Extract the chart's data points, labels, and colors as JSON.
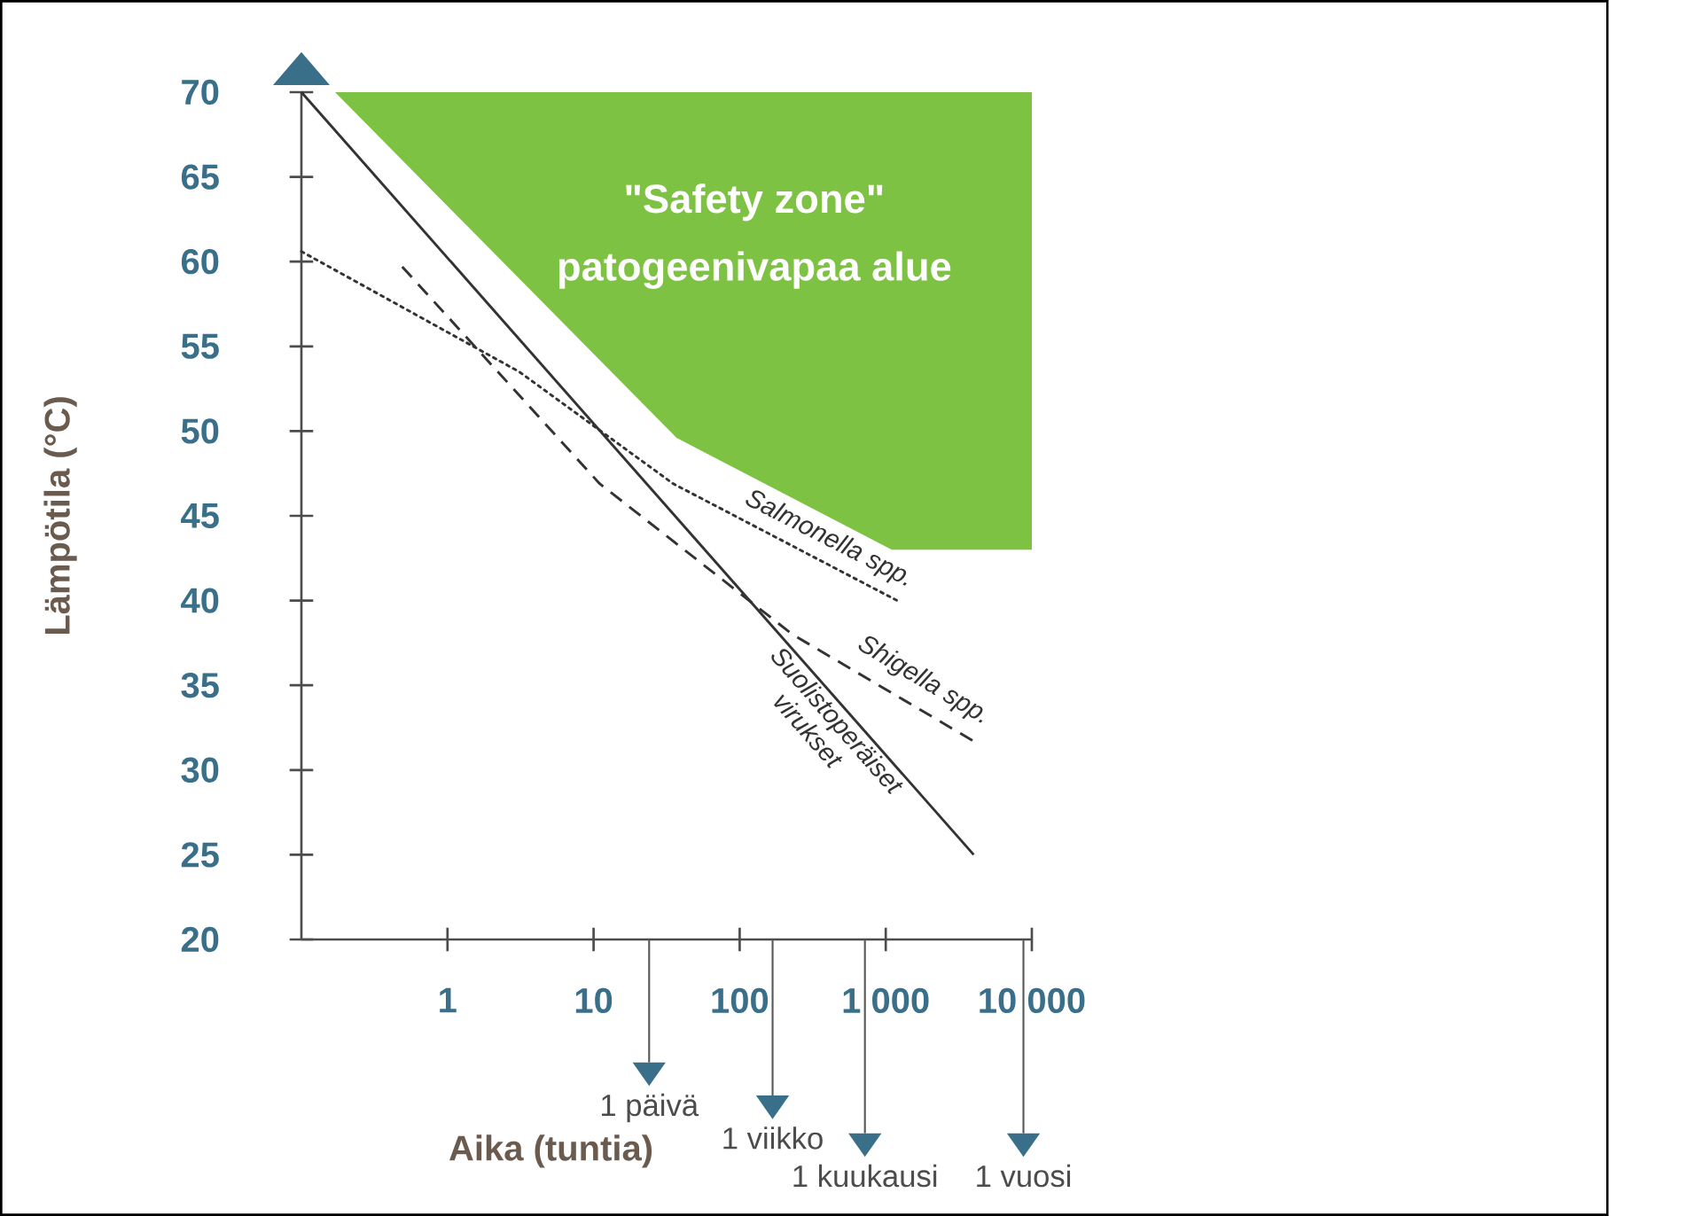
{
  "chart_data": {
    "type": "line",
    "xlabel": "Aika (tuntia)",
    "ylabel": "Lämpötila (°C)",
    "log": "x",
    "xlim": [
      0.1,
      10000
    ],
    "ylim": [
      20,
      70
    ],
    "xticks": [
      1,
      10,
      100,
      {
        "value": 1000,
        "label": "1 000"
      },
      {
        "value": 10000,
        "label": "10 000"
      }
    ],
    "yticks": [
      20,
      25,
      30,
      35,
      40,
      45,
      50,
      55,
      60,
      65,
      70
    ],
    "series": [
      {
        "type": "area",
        "color": "#7dc242",
        "x": [
          0.17,
          37,
          1100,
          10000,
          10000
        ],
        "values": [
          70,
          49.6,
          43,
          43,
          70
        ]
      },
      {
        "name": "Salmonella spp.",
        "color": "#333333",
        "line_style": "dotted",
        "x": [
          0.1,
          3.1,
          35,
          1260
        ],
        "values": [
          60.6,
          53.5,
          46.9,
          39.9
        ]
      },
      {
        "name": "Shigella spp.",
        "color": "#333333",
        "line_style": "dashed",
        "x": [
          0.49,
          11,
          230,
          4000
        ],
        "values": [
          59.7,
          46.9,
          38,
          31.7
        ]
      },
      {
        "name": "Suolistoperäiset virukset",
        "color": "#333333",
        "line_style": "solid",
        "x": [
          0.1,
          4000
        ],
        "values": [
          70,
          25
        ]
      }
    ],
    "ref_lines": [
      {
        "axis": "x",
        "value": 24,
        "label": "1 päivä"
      },
      {
        "axis": "x",
        "value": 168,
        "label": "1 viikko"
      },
      {
        "axis": "x",
        "value": 720,
        "label": "1 kuukausi"
      },
      {
        "axis": "x",
        "value": 8760,
        "label": "1 vuosi"
      }
    ],
    "annotations": [
      "\"Safety zone\"",
      "patogeenivapaa alue"
    ]
  }
}
